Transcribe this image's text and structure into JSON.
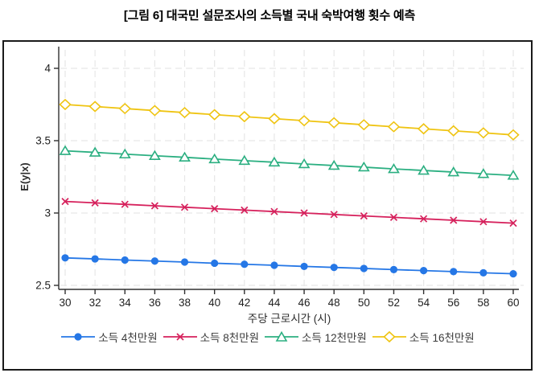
{
  "page": {
    "title": "[그림 6] 대국민 설문조사의 소득별 국내 숙박여행 횟수 예측"
  },
  "chart_data": {
    "type": "line",
    "title": "",
    "xlabel": "주당 근로시간 (시)",
    "ylabel": "E(y|x)",
    "xlim": [
      30,
      60
    ],
    "ylim": [
      2.5,
      4
    ],
    "grid": true,
    "legend_position": "bottom",
    "xticks": [
      30,
      32,
      34,
      36,
      38,
      40,
      42,
      44,
      46,
      48,
      50,
      52,
      54,
      56,
      58,
      60
    ],
    "yticks": [
      2.5,
      3,
      3.5,
      4
    ],
    "ytick_labels": [
      "2.5",
      "3",
      "3.5",
      "4"
    ],
    "x": [
      30,
      32,
      34,
      36,
      38,
      40,
      42,
      44,
      46,
      48,
      50,
      52,
      54,
      56,
      58,
      60
    ],
    "series": [
      {
        "name": "소득 4천만원",
        "marker": "circle-filled",
        "color": "#2577E6",
        "values": [
          2.69,
          2.683,
          2.675,
          2.668,
          2.661,
          2.653,
          2.646,
          2.639,
          2.631,
          2.624,
          2.617,
          2.609,
          2.602,
          2.595,
          2.587,
          2.58
        ]
      },
      {
        "name": "소득 8천만원",
        "marker": "x-cross",
        "color": "#D6215C",
        "values": [
          3.08,
          3.07,
          3.06,
          3.05,
          3.04,
          3.03,
          3.02,
          3.01,
          3.0,
          2.99,
          2.98,
          2.97,
          2.96,
          2.95,
          2.94,
          2.93
        ]
      },
      {
        "name": "소득 12천만원",
        "marker": "triangle-open",
        "color": "#2BAF81",
        "values": [
          3.43,
          3.419,
          3.407,
          3.396,
          3.385,
          3.373,
          3.362,
          3.351,
          3.339,
          3.328,
          3.317,
          3.305,
          3.294,
          3.283,
          3.271,
          3.26
        ]
      },
      {
        "name": "소득 16천만원",
        "marker": "diamond-open",
        "color": "#EFC412",
        "values": [
          3.75,
          3.736,
          3.722,
          3.708,
          3.694,
          3.68,
          3.666,
          3.652,
          3.638,
          3.624,
          3.61,
          3.596,
          3.582,
          3.568,
          3.554,
          3.54
        ]
      }
    ]
  }
}
